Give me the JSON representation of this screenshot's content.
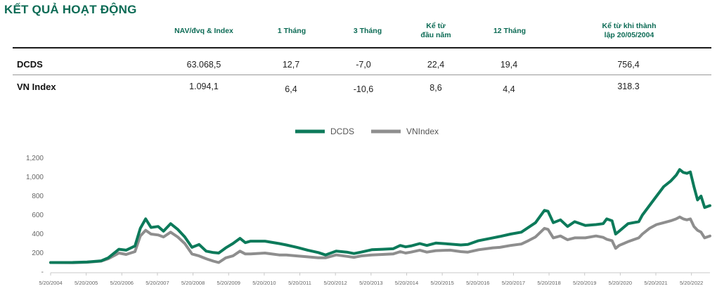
{
  "title": "KẾT QUẢ HOẠT ĐỘNG",
  "table": {
    "headers": [
      "NAV/đvq & Index",
      "1 Tháng",
      "3 Tháng",
      "Kể từ\nđầu năm",
      "12 Tháng",
      "Kể từ khi thành\nlập 20/05/2004"
    ],
    "rows": [
      {
        "label": "DCDS",
        "values": [
          "63.068,5",
          "12,7",
          "-7,0",
          "22,4",
          "19,4",
          "756,4"
        ]
      },
      {
        "label": "VN Index",
        "values": [
          "1.094,1",
          "6,4",
          "-10,6",
          "8,6",
          "4,4",
          "318.3"
        ]
      }
    ]
  },
  "colors": {
    "dcds": "#0c7a5a",
    "vnindex": "#8e8e8e",
    "title": "#0c6b55"
  },
  "chart_data": {
    "type": "line",
    "x_ticks": [
      "5/20/2004",
      "5/20/2005",
      "5/20/2006",
      "5/20/2007",
      "5/20/2008",
      "5/20/2009",
      "5/20/2010",
      "5/20/2011",
      "5/20/2012",
      "5/20/2013",
      "5/20/2014",
      "5/20/2015",
      "5/20/2016",
      "5/20/2017",
      "5/20/2018",
      "5/20/2019",
      "5/20/2020",
      "5/20/2021",
      "5/20/2022"
    ],
    "y_ticks": [
      "-",
      "200",
      "400",
      "600",
      "800",
      "1,000",
      "1,200"
    ],
    "ylim": [
      0,
      1200
    ],
    "xlim": [
      2004.38,
      2022.9
    ],
    "legend_position": "top",
    "series": [
      {
        "name": "DCDS",
        "color": "#0c7a5a",
        "points": [
          [
            2004.38,
            100
          ],
          [
            2005.0,
            101
          ],
          [
            2005.4,
            105
          ],
          [
            2005.8,
            118
          ],
          [
            2006.0,
            150
          ],
          [
            2006.3,
            240
          ],
          [
            2006.5,
            230
          ],
          [
            2006.75,
            275
          ],
          [
            2006.9,
            460
          ],
          [
            2007.05,
            560
          ],
          [
            2007.2,
            470
          ],
          [
            2007.4,
            480
          ],
          [
            2007.55,
            430
          ],
          [
            2007.75,
            510
          ],
          [
            2007.95,
            450
          ],
          [
            2008.15,
            370
          ],
          [
            2008.35,
            260
          ],
          [
            2008.55,
            290
          ],
          [
            2008.75,
            220
          ],
          [
            2008.95,
            205
          ],
          [
            2009.1,
            200
          ],
          [
            2009.3,
            255
          ],
          [
            2009.5,
            300
          ],
          [
            2009.7,
            355
          ],
          [
            2009.85,
            310
          ],
          [
            2010.0,
            325
          ],
          [
            2010.4,
            325
          ],
          [
            2010.8,
            300
          ],
          [
            2011.0,
            285
          ],
          [
            2011.3,
            260
          ],
          [
            2011.6,
            230
          ],
          [
            2011.9,
            205
          ],
          [
            2012.1,
            180
          ],
          [
            2012.4,
            220
          ],
          [
            2012.7,
            210
          ],
          [
            2012.9,
            195
          ],
          [
            2013.1,
            210
          ],
          [
            2013.4,
            235
          ],
          [
            2013.7,
            240
          ],
          [
            2014.0,
            245
          ],
          [
            2014.2,
            280
          ],
          [
            2014.35,
            265
          ],
          [
            2014.5,
            275
          ],
          [
            2014.75,
            300
          ],
          [
            2014.95,
            280
          ],
          [
            2015.2,
            305
          ],
          [
            2015.6,
            295
          ],
          [
            2015.9,
            285
          ],
          [
            2016.1,
            290
          ],
          [
            2016.4,
            330
          ],
          [
            2016.8,
            360
          ],
          [
            2017.0,
            375
          ],
          [
            2017.3,
            400
          ],
          [
            2017.6,
            420
          ],
          [
            2017.8,
            470
          ],
          [
            2018.0,
            520
          ],
          [
            2018.25,
            650
          ],
          [
            2018.35,
            640
          ],
          [
            2018.5,
            520
          ],
          [
            2018.7,
            550
          ],
          [
            2018.9,
            480
          ],
          [
            2019.1,
            530
          ],
          [
            2019.4,
            490
          ],
          [
            2019.7,
            500
          ],
          [
            2019.9,
            510
          ],
          [
            2020.0,
            560
          ],
          [
            2020.15,
            540
          ],
          [
            2020.25,
            400
          ],
          [
            2020.35,
            430
          ],
          [
            2020.6,
            510
          ],
          [
            2020.9,
            530
          ],
          [
            2021.0,
            600
          ],
          [
            2021.2,
            700
          ],
          [
            2021.4,
            800
          ],
          [
            2021.6,
            900
          ],
          [
            2021.8,
            960
          ],
          [
            2021.95,
            1020
          ],
          [
            2022.05,
            1080
          ],
          [
            2022.15,
            1050
          ],
          [
            2022.25,
            1040
          ],
          [
            2022.35,
            1055
          ],
          [
            2022.45,
            900
          ],
          [
            2022.55,
            760
          ],
          [
            2022.65,
            800
          ],
          [
            2022.75,
            680
          ],
          [
            2022.9,
            700
          ]
        ]
      },
      {
        "name": "VNIndex",
        "color": "#8e8e8e",
        "points": [
          [
            2004.38,
            100
          ],
          [
            2005.0,
            98
          ],
          [
            2005.4,
            103
          ],
          [
            2005.8,
            115
          ],
          [
            2006.0,
            140
          ],
          [
            2006.3,
            200
          ],
          [
            2006.5,
            185
          ],
          [
            2006.75,
            215
          ],
          [
            2006.9,
            380
          ],
          [
            2007.05,
            440
          ],
          [
            2007.2,
            400
          ],
          [
            2007.4,
            390
          ],
          [
            2007.55,
            370
          ],
          [
            2007.75,
            420
          ],
          [
            2007.95,
            370
          ],
          [
            2008.15,
            300
          ],
          [
            2008.35,
            190
          ],
          [
            2008.55,
            170
          ],
          [
            2008.75,
            140
          ],
          [
            2008.95,
            115
          ],
          [
            2009.1,
            100
          ],
          [
            2009.3,
            150
          ],
          [
            2009.5,
            170
          ],
          [
            2009.7,
            220
          ],
          [
            2009.85,
            190
          ],
          [
            2010.0,
            190
          ],
          [
            2010.4,
            200
          ],
          [
            2010.8,
            180
          ],
          [
            2011.0,
            180
          ],
          [
            2011.3,
            170
          ],
          [
            2011.6,
            160
          ],
          [
            2011.9,
            150
          ],
          [
            2012.1,
            150
          ],
          [
            2012.4,
            180
          ],
          [
            2012.7,
            165
          ],
          [
            2012.9,
            155
          ],
          [
            2013.1,
            170
          ],
          [
            2013.4,
            180
          ],
          [
            2013.7,
            185
          ],
          [
            2014.0,
            190
          ],
          [
            2014.2,
            215
          ],
          [
            2014.35,
            200
          ],
          [
            2014.5,
            210
          ],
          [
            2014.75,
            230
          ],
          [
            2014.95,
            210
          ],
          [
            2015.2,
            225
          ],
          [
            2015.6,
            230
          ],
          [
            2015.9,
            215
          ],
          [
            2016.1,
            210
          ],
          [
            2016.4,
            235
          ],
          [
            2016.8,
            255
          ],
          [
            2017.0,
            260
          ],
          [
            2017.3,
            280
          ],
          [
            2017.6,
            295
          ],
          [
            2017.8,
            330
          ],
          [
            2018.0,
            370
          ],
          [
            2018.25,
            460
          ],
          [
            2018.35,
            450
          ],
          [
            2018.5,
            360
          ],
          [
            2018.7,
            380
          ],
          [
            2018.9,
            340
          ],
          [
            2019.1,
            360
          ],
          [
            2019.4,
            360
          ],
          [
            2019.7,
            380
          ],
          [
            2019.9,
            365
          ],
          [
            2020.0,
            345
          ],
          [
            2020.15,
            330
          ],
          [
            2020.25,
            250
          ],
          [
            2020.35,
            280
          ],
          [
            2020.6,
            320
          ],
          [
            2020.9,
            360
          ],
          [
            2021.0,
            400
          ],
          [
            2021.2,
            460
          ],
          [
            2021.4,
            500
          ],
          [
            2021.6,
            520
          ],
          [
            2021.8,
            540
          ],
          [
            2021.95,
            560
          ],
          [
            2022.05,
            580
          ],
          [
            2022.15,
            560
          ],
          [
            2022.25,
            550
          ],
          [
            2022.35,
            560
          ],
          [
            2022.45,
            480
          ],
          [
            2022.55,
            440
          ],
          [
            2022.65,
            420
          ],
          [
            2022.75,
            360
          ],
          [
            2022.9,
            380
          ]
        ]
      }
    ]
  }
}
